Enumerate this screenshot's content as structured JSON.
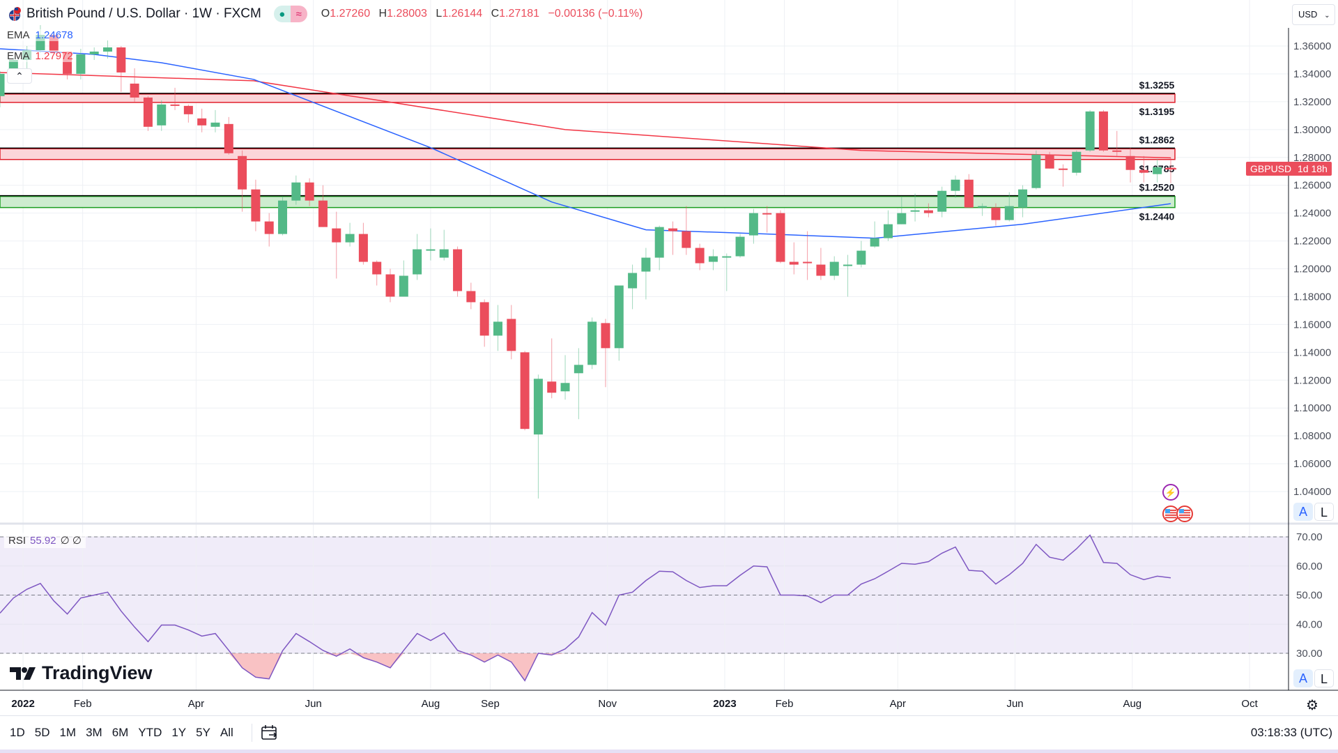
{
  "header": {
    "title": "British Pound / U.S. Dollar · 1W · FXCM",
    "flag_icon": "gb-us-flag-icon",
    "ohlc": {
      "o_label": "O",
      "o": "1.27260",
      "h_label": "H",
      "h": "1.28003",
      "l_label": "L",
      "l": "1.26144",
      "c_label": "C",
      "c": "1.27181",
      "change": "−0.00136 (−0.11%)"
    },
    "ema1": {
      "label": "EMA",
      "value": "1.24678",
      "color": "#2962ff"
    },
    "ema2": {
      "label": "EMA",
      "value": "1.27972",
      "color": "#f23645"
    },
    "collapse_icon": "chevron-up-icon"
  },
  "currency_select": "USD",
  "price_tag": {
    "symbol": "GBPUSD",
    "countdown": "1d 18h"
  },
  "scale_buttons": {
    "auto": "A",
    "log": "L"
  },
  "rsi_legend": {
    "label": "RSI",
    "value": "55.92",
    "extra1": "∅",
    "extra2": "∅"
  },
  "logo": "TradingView",
  "bottom_bar": {
    "ranges": [
      "1D",
      "5D",
      "1M",
      "3M",
      "6M",
      "YTD",
      "1Y",
      "5Y",
      "All"
    ],
    "clock": "03:18:33 (UTC)"
  },
  "colors": {
    "up": "#53b987",
    "down": "#eb4d5c",
    "ema_fast": "#2962ff",
    "ema_slow": "#f23645",
    "zone_red": "#fbd5d9",
    "zone_green": "#cdeccf",
    "rsi": "#7e57c2",
    "rsi_band": "#f0ecf9"
  },
  "chart_data": {
    "type": "candlestick",
    "symbol": "GBPUSD",
    "interval": "1W",
    "price_ticks": [
      "1.04000",
      "1.06000",
      "1.08000",
      "1.10000",
      "1.12000",
      "1.14000",
      "1.16000",
      "1.18000",
      "1.20000",
      "1.22000",
      "1.24000",
      "1.26000",
      "1.28000",
      "1.30000",
      "1.32000",
      "1.34000",
      "1.36000"
    ],
    "ylim": [
      1.02,
      1.37
    ],
    "time_labels": [
      {
        "date": "2022-01-01",
        "label": "2022",
        "bold": true
      },
      {
        "date": "2022-02-01",
        "label": "Feb"
      },
      {
        "date": "2022-04-01",
        "label": "Apr"
      },
      {
        "date": "2022-06-01",
        "label": "Jun"
      },
      {
        "date": "2022-08-01",
        "label": "Aug"
      },
      {
        "date": "2022-09-01",
        "label": "Sep"
      },
      {
        "date": "2022-11-01",
        "label": "Nov"
      },
      {
        "date": "2023-01-01",
        "label": "2023",
        "bold": true
      },
      {
        "date": "2023-02-01",
        "label": "Feb"
      },
      {
        "date": "2023-04-01",
        "label": "Apr"
      },
      {
        "date": "2023-06-01",
        "label": "Jun"
      },
      {
        "date": "2023-08-01",
        "label": "Aug"
      },
      {
        "date": "2023-10-01",
        "label": "Oct"
      }
    ],
    "candles": [
      [
        "2021-12-20",
        1.324,
        1.342,
        1.316,
        1.34
      ],
      [
        "2021-12-27",
        1.34,
        1.352,
        1.338,
        1.35
      ],
      [
        "2022-01-03",
        1.35,
        1.36,
        1.343,
        1.357
      ],
      [
        "2022-01-10",
        1.357,
        1.375,
        1.355,
        1.368
      ],
      [
        "2022-01-17",
        1.368,
        1.37,
        1.356,
        1.356
      ],
      [
        "2022-01-24",
        1.356,
        1.356,
        1.336,
        1.34
      ],
      [
        "2022-01-31",
        1.34,
        1.358,
        1.336,
        1.354
      ],
      [
        "2022-02-07",
        1.354,
        1.359,
        1.35,
        1.356
      ],
      [
        "2022-02-14",
        1.356,
        1.364,
        1.351,
        1.359
      ],
      [
        "2022-02-21",
        1.359,
        1.36,
        1.327,
        1.341
      ],
      [
        "2022-02-28",
        1.333,
        1.344,
        1.32,
        1.323
      ],
      [
        "2022-03-07",
        1.323,
        1.324,
        1.299,
        1.302
      ],
      [
        "2022-03-14",
        1.303,
        1.321,
        1.299,
        1.318
      ],
      [
        "2022-03-21",
        1.318,
        1.33,
        1.314,
        1.317
      ],
      [
        "2022-03-28",
        1.317,
        1.318,
        1.305,
        1.311
      ],
      [
        "2022-04-04",
        1.308,
        1.315,
        1.298,
        1.303
      ],
      [
        "2022-04-11",
        1.302,
        1.314,
        1.298,
        1.305
      ],
      [
        "2022-04-18",
        1.304,
        1.309,
        1.282,
        1.283
      ],
      [
        "2022-04-25",
        1.281,
        1.285,
        1.241,
        1.257
      ],
      [
        "2022-05-02",
        1.257,
        1.264,
        1.227,
        1.234
      ],
      [
        "2022-05-09",
        1.234,
        1.24,
        1.216,
        1.225
      ],
      [
        "2022-05-16",
        1.225,
        1.252,
        1.224,
        1.249
      ],
      [
        "2022-05-23",
        1.249,
        1.267,
        1.246,
        1.262
      ],
      [
        "2022-05-30",
        1.262,
        1.265,
        1.245,
        1.249
      ],
      [
        "2022-06-06",
        1.249,
        1.26,
        1.23,
        1.23
      ],
      [
        "2022-06-13",
        1.229,
        1.241,
        1.193,
        1.219
      ],
      [
        "2022-06-20",
        1.219,
        1.233,
        1.216,
        1.225
      ],
      [
        "2022-06-27",
        1.225,
        1.233,
        1.203,
        1.205
      ],
      [
        "2022-07-04",
        1.205,
        1.206,
        1.188,
        1.196
      ],
      [
        "2022-07-11",
        1.196,
        1.2,
        1.176,
        1.18
      ],
      [
        "2022-07-18",
        1.18,
        1.206,
        1.18,
        1.195
      ],
      [
        "2022-07-25",
        1.196,
        1.225,
        1.192,
        1.214
      ],
      [
        "2022-08-01",
        1.213,
        1.229,
        1.206,
        1.214
      ],
      [
        "2022-08-08",
        1.208,
        1.228,
        1.206,
        1.214
      ],
      [
        "2022-08-15",
        1.214,
        1.216,
        1.18,
        1.184
      ],
      [
        "2022-08-22",
        1.184,
        1.19,
        1.171,
        1.176
      ],
      [
        "2022-08-29",
        1.176,
        1.178,
        1.144,
        1.152
      ],
      [
        "2022-09-05",
        1.152,
        1.174,
        1.141,
        1.162
      ],
      [
        "2022-09-12",
        1.164,
        1.174,
        1.135,
        1.141
      ],
      [
        "2022-09-19",
        1.14,
        1.141,
        1.084,
        1.085
      ],
      [
        "2022-09-26",
        1.081,
        1.124,
        1.035,
        1.121
      ],
      [
        "2022-10-03",
        1.119,
        1.15,
        1.107,
        1.111
      ],
      [
        "2022-10-10",
        1.112,
        1.138,
        1.106,
        1.118
      ],
      [
        "2022-10-17",
        1.125,
        1.143,
        1.092,
        1.131
      ],
      [
        "2022-10-24",
        1.131,
        1.165,
        1.128,
        1.162
      ],
      [
        "2022-10-31",
        1.161,
        1.164,
        1.115,
        1.143
      ],
      [
        "2022-11-07",
        1.143,
        1.186,
        1.134,
        1.188
      ],
      [
        "2022-11-14",
        1.186,
        1.203,
        1.171,
        1.197
      ],
      [
        "2022-11-21",
        1.198,
        1.215,
        1.178,
        1.208
      ],
      [
        "2022-11-28",
        1.208,
        1.231,
        1.199,
        1.23
      ],
      [
        "2022-12-05",
        1.229,
        1.234,
        1.21,
        1.227
      ],
      [
        "2022-12-12",
        1.227,
        1.245,
        1.21,
        1.215
      ],
      [
        "2022-12-19",
        1.215,
        1.218,
        1.199,
        1.204
      ],
      [
        "2022-12-26",
        1.205,
        1.214,
        1.199,
        1.209
      ],
      [
        "2023-01-02",
        1.209,
        1.211,
        1.184,
        1.209
      ],
      [
        "2023-01-09",
        1.209,
        1.225,
        1.208,
        1.223
      ],
      [
        "2023-01-16",
        1.224,
        1.243,
        1.218,
        1.24
      ],
      [
        "2023-01-23",
        1.24,
        1.245,
        1.226,
        1.239
      ],
      [
        "2023-01-30",
        1.24,
        1.242,
        1.204,
        1.205
      ],
      [
        "2023-02-06",
        1.205,
        1.219,
        1.196,
        1.203
      ],
      [
        "2023-02-13",
        1.205,
        1.227,
        1.192,
        1.204
      ],
      [
        "2023-02-20",
        1.203,
        1.215,
        1.192,
        1.195
      ],
      [
        "2023-02-27",
        1.195,
        1.209,
        1.192,
        1.205
      ],
      [
        "2023-03-06",
        1.203,
        1.21,
        1.18,
        1.203
      ],
      [
        "2023-03-13",
        1.203,
        1.22,
        1.201,
        1.213
      ],
      [
        "2023-03-20",
        1.216,
        1.234,
        1.215,
        1.222
      ],
      [
        "2023-03-27",
        1.222,
        1.242,
        1.22,
        1.232
      ],
      [
        "2023-04-03",
        1.232,
        1.252,
        1.232,
        1.24
      ],
      [
        "2023-04-10",
        1.241,
        1.254,
        1.234,
        1.242
      ],
      [
        "2023-04-17",
        1.242,
        1.247,
        1.237,
        1.24
      ],
      [
        "2023-04-24",
        1.241,
        1.259,
        1.237,
        1.256
      ],
      [
        "2023-05-01",
        1.256,
        1.267,
        1.251,
        1.264
      ],
      [
        "2023-05-08",
        1.264,
        1.268,
        1.244,
        1.244
      ],
      [
        "2023-05-15",
        1.244,
        1.247,
        1.238,
        1.245
      ],
      [
        "2023-05-22",
        1.244,
        1.247,
        1.231,
        1.235
      ],
      [
        "2023-05-29",
        1.235,
        1.255,
        1.234,
        1.245
      ],
      [
        "2023-06-05",
        1.244,
        1.26,
        1.237,
        1.257
      ],
      [
        "2023-06-12",
        1.258,
        1.285,
        1.257,
        1.282
      ],
      [
        "2023-06-19",
        1.282,
        1.284,
        1.272,
        1.272
      ],
      [
        "2023-06-26",
        1.272,
        1.275,
        1.259,
        1.271
      ],
      [
        "2023-07-03",
        1.269,
        1.285,
        1.267,
        1.284
      ],
      [
        "2023-07-10",
        1.285,
        1.314,
        1.284,
        1.313
      ],
      [
        "2023-07-17",
        1.313,
        1.314,
        1.284,
        1.285
      ],
      [
        "2023-07-24",
        1.285,
        1.299,
        1.281,
        1.284
      ],
      [
        "2023-07-31",
        1.281,
        1.287,
        1.262,
        1.271
      ],
      [
        "2023-08-07",
        1.271,
        1.281,
        1.262,
        1.269
      ],
      [
        "2023-08-14",
        1.268,
        1.279,
        1.262,
        1.273
      ],
      [
        "2023-08-21",
        1.2726,
        1.28003,
        1.26144,
        1.27181
      ]
    ],
    "ema_fast": [
      [
        "2021-12-20",
        1.358
      ],
      [
        "2022-02-07",
        1.354
      ],
      [
        "2022-03-14",
        1.348
      ],
      [
        "2022-05-01",
        1.336
      ],
      [
        "2022-08-01",
        1.287
      ],
      [
        "2022-10-03",
        1.248
      ],
      [
        "2022-11-21",
        1.228
      ],
      [
        "2023-01-23",
        1.225
      ],
      [
        "2023-03-20",
        1.222
      ],
      [
        "2023-06-05",
        1.232
      ],
      [
        "2023-08-21",
        1.24678
      ]
    ],
    "ema_slow": [
      [
        "2021-12-20",
        1.341
      ],
      [
        "2022-05-01",
        1.335
      ],
      [
        "2022-10-10",
        1.3
      ],
      [
        "2023-03-13",
        1.285
      ],
      [
        "2023-08-21",
        1.27972
      ]
    ],
    "zones": [
      {
        "low": 1.3195,
        "high": 1.3255,
        "kind": "resistance",
        "label_high": "$1.3255",
        "label_low": "$1.3195"
      },
      {
        "low": 1.2785,
        "high": 1.2862,
        "kind": "resistance",
        "label_high": "$1.2862",
        "label_low": "$1.2785"
      },
      {
        "low": 1.244,
        "high": 1.252,
        "kind": "support",
        "label_high": "$1.2520",
        "label_low": "$1.2440"
      }
    ],
    "zone_end_date": "2023-08-21",
    "rsi": {
      "ticks": [
        "30.00",
        "40.00",
        "50.00",
        "60.00",
        "70.00"
      ],
      "ylim": [
        15,
        75
      ],
      "levels": [
        30,
        50,
        70
      ],
      "values": [
        43.8,
        49,
        52,
        54,
        48,
        43.5,
        49,
        50,
        51,
        44.5,
        39,
        34,
        39.7,
        39.7,
        38,
        35.9,
        36.8,
        31,
        25,
        21.8,
        21.2,
        30.9,
        36.8,
        34,
        31,
        29,
        31.5,
        28.5,
        27,
        25,
        31,
        36.8,
        34.4,
        37,
        31,
        29.4,
        27,
        29.4,
        27,
        20.6,
        30,
        29.4,
        31.5,
        35.6,
        44,
        39.7,
        50,
        51,
        55,
        58.2,
        58,
        55,
        52.6,
        53.2,
        53.2,
        56.8,
        60,
        59.7,
        50,
        50,
        49.7,
        47.4,
        50,
        50,
        53.8,
        55.6,
        58.2,
        60.9,
        60.6,
        61.5,
        64.4,
        66.5,
        58.5,
        58.2,
        53.8,
        57,
        60.9,
        67.4,
        63,
        62,
        65.9,
        70.6,
        61.2,
        60.9,
        57,
        55.3,
        56.5,
        55.92
      ]
    },
    "events": [
      "lightning-icon",
      "us-flag-icon",
      "us-flag-icon"
    ]
  }
}
